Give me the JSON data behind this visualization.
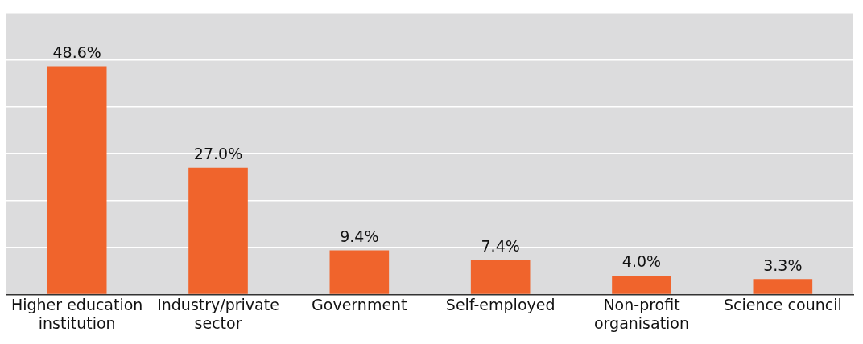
{
  "chart_data": {
    "type": "bar",
    "categories": [
      "Higher education institution",
      "Industry/private sector",
      "Government",
      "Self-employed",
      "Non-profit organisation",
      "Science council"
    ],
    "values": [
      48.6,
      27.0,
      9.4,
      7.4,
      4.0,
      3.3
    ],
    "value_labels": [
      "48.6%",
      "27.0%",
      "9.4%",
      "7.4%",
      "4.0%",
      "3.3%"
    ],
    "color": "#f0642c",
    "ylim": [
      0,
      60
    ],
    "yticks": [
      {
        "value": 0,
        "label": null
      },
      {
        "value": 10,
        "label": null
      },
      {
        "value": 20,
        "label": null
      },
      {
        "value": 30,
        "label": null
      },
      {
        "value": 40,
        "label": null
      },
      {
        "value": 50,
        "label": null
      },
      {
        "value": 60,
        "label": null
      }
    ],
    "grid": "y",
    "tick_labels": "x",
    "legend": false
  }
}
